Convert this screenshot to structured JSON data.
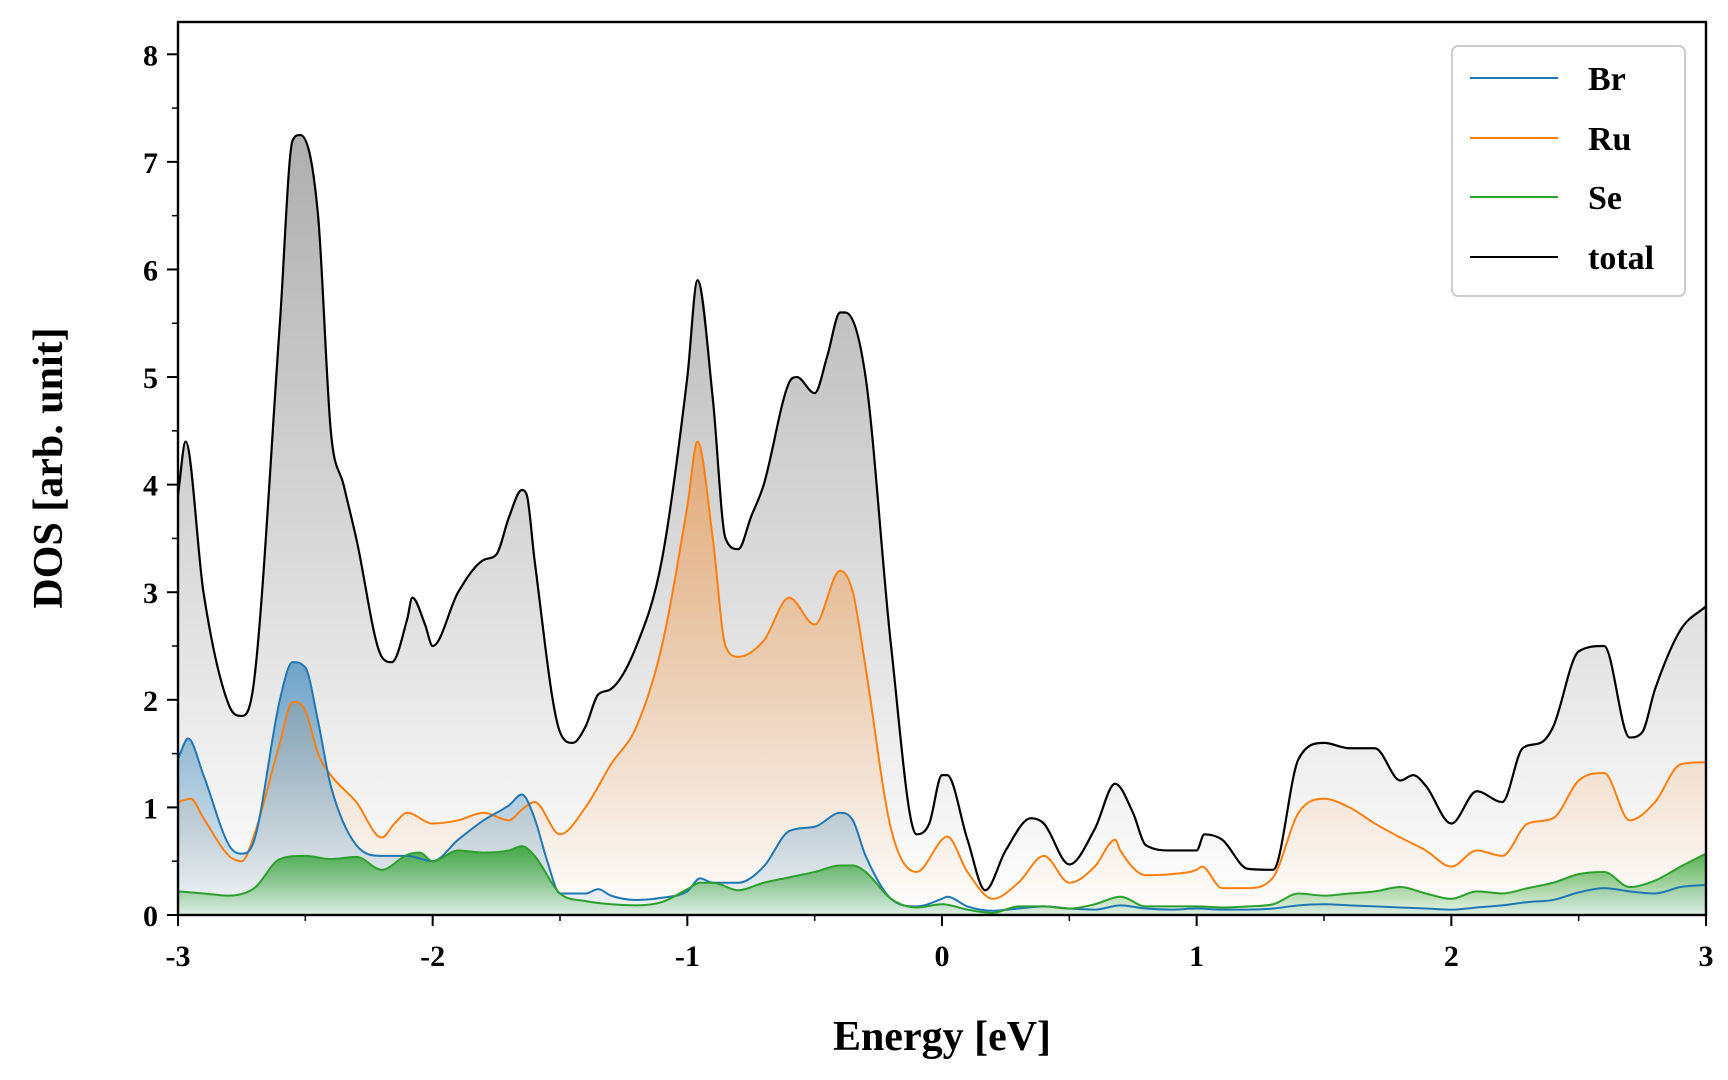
{
  "chart_data": {
    "type": "line",
    "title": "",
    "xlabel": "Energy [eV]",
    "ylabel": "DOS [arb. unit]",
    "xlim": [
      -3,
      3
    ],
    "ylim": [
      0,
      8.3
    ],
    "x_ticks": [
      -3,
      -2,
      -1,
      0,
      1,
      2,
      3
    ],
    "x_tick_labels": [
      "-3",
      "-2",
      "-1",
      "0",
      "1",
      "2",
      "3"
    ],
    "y_ticks": [
      0,
      1,
      2,
      3,
      4,
      5,
      6,
      7,
      8
    ],
    "y_tick_labels": [
      "0",
      "1",
      "2",
      "3",
      "4",
      "5",
      "6",
      "7",
      "8"
    ],
    "legend_position": "top-right",
    "grid": false,
    "series": [
      {
        "name": "Br",
        "color": "#1f77b4",
        "x": [
          -3.0,
          -2.96,
          -2.9,
          -2.8,
          -2.75,
          -2.7,
          -2.6,
          -2.55,
          -2.5,
          -2.45,
          -2.4,
          -2.3,
          -2.2,
          -2.1,
          -2.0,
          -1.9,
          -1.8,
          -1.7,
          -1.65,
          -1.6,
          -1.55,
          -1.5,
          -1.4,
          -1.35,
          -1.3,
          -1.2,
          -1.1,
          -1.0,
          -0.95,
          -0.9,
          -0.8,
          -0.7,
          -0.6,
          -0.5,
          -0.4,
          -0.35,
          -0.3,
          -0.2,
          -0.1,
          0.0,
          0.02,
          0.1,
          0.2,
          0.3,
          0.4,
          0.5,
          0.6,
          0.7,
          0.8,
          0.9,
          1.0,
          1.1,
          1.2,
          1.3,
          1.4,
          1.5,
          1.6,
          1.7,
          1.8,
          1.9,
          2.0,
          2.1,
          2.2,
          2.3,
          2.4,
          2.5,
          2.6,
          2.7,
          2.8,
          2.9,
          3.0
        ],
        "values": [
          1.45,
          1.64,
          1.3,
          0.65,
          0.57,
          0.7,
          2.0,
          2.35,
          2.3,
          1.8,
          1.2,
          0.65,
          0.55,
          0.55,
          0.5,
          0.7,
          0.88,
          1.02,
          1.12,
          0.9,
          0.5,
          0.2,
          0.2,
          0.24,
          0.18,
          0.14,
          0.16,
          0.22,
          0.34,
          0.3,
          0.3,
          0.45,
          0.78,
          0.82,
          0.95,
          0.88,
          0.55,
          0.15,
          0.08,
          0.15,
          0.17,
          0.08,
          0.04,
          0.06,
          0.08,
          0.06,
          0.05,
          0.09,
          0.06,
          0.05,
          0.06,
          0.05,
          0.05,
          0.06,
          0.09,
          0.1,
          0.09,
          0.08,
          0.07,
          0.06,
          0.05,
          0.07,
          0.09,
          0.12,
          0.14,
          0.21,
          0.25,
          0.22,
          0.2,
          0.26,
          0.28
        ]
      },
      {
        "name": "Ru",
        "color": "#ff7f0e",
        "x": [
          -3.0,
          -2.95,
          -2.9,
          -2.8,
          -2.75,
          -2.7,
          -2.6,
          -2.55,
          -2.5,
          -2.45,
          -2.4,
          -2.3,
          -2.2,
          -2.15,
          -2.1,
          -2.0,
          -1.9,
          -1.8,
          -1.7,
          -1.65,
          -1.6,
          -1.5,
          -1.4,
          -1.3,
          -1.2,
          -1.1,
          -1.0,
          -0.96,
          -0.9,
          -0.85,
          -0.8,
          -0.7,
          -0.6,
          -0.5,
          -0.4,
          -0.35,
          -0.3,
          -0.2,
          -0.1,
          0.0,
          0.02,
          0.1,
          0.2,
          0.3,
          0.4,
          0.5,
          0.6,
          0.68,
          0.7,
          0.8,
          0.9,
          1.0,
          1.02,
          1.1,
          1.2,
          1.3,
          1.4,
          1.5,
          1.6,
          1.7,
          1.8,
          1.9,
          2.0,
          2.1,
          2.2,
          2.3,
          2.4,
          2.5,
          2.6,
          2.7,
          2.8,
          2.9,
          3.0
        ],
        "values": [
          1.05,
          1.08,
          0.9,
          0.55,
          0.5,
          0.75,
          1.6,
          1.98,
          1.9,
          1.5,
          1.3,
          1.05,
          0.72,
          0.85,
          0.95,
          0.85,
          0.88,
          0.95,
          0.88,
          0.98,
          1.05,
          0.75,
          1.0,
          1.4,
          1.75,
          2.5,
          3.8,
          4.4,
          3.5,
          2.5,
          2.4,
          2.55,
          2.95,
          2.7,
          3.2,
          3.0,
          2.3,
          0.8,
          0.4,
          0.7,
          0.73,
          0.4,
          0.15,
          0.3,
          0.55,
          0.3,
          0.45,
          0.7,
          0.6,
          0.37,
          0.38,
          0.42,
          0.45,
          0.25,
          0.25,
          0.35,
          0.95,
          1.08,
          1.0,
          0.85,
          0.72,
          0.6,
          0.45,
          0.6,
          0.55,
          0.85,
          0.9,
          1.25,
          1.32,
          0.88,
          1.05,
          1.4,
          1.42
        ]
      },
      {
        "name": "Se",
        "color": "#2ca02c",
        "x": [
          -3.0,
          -2.9,
          -2.8,
          -2.7,
          -2.6,
          -2.5,
          -2.4,
          -2.3,
          -2.2,
          -2.1,
          -2.05,
          -2.0,
          -1.9,
          -1.8,
          -1.7,
          -1.65,
          -1.6,
          -1.5,
          -1.4,
          -1.3,
          -1.2,
          -1.1,
          -1.0,
          -0.95,
          -0.9,
          -0.8,
          -0.7,
          -0.6,
          -0.5,
          -0.4,
          -0.35,
          -0.3,
          -0.2,
          -0.1,
          0.0,
          0.1,
          0.2,
          0.3,
          0.4,
          0.5,
          0.6,
          0.7,
          0.8,
          0.9,
          1.0,
          1.1,
          1.2,
          1.3,
          1.4,
          1.5,
          1.6,
          1.7,
          1.8,
          1.9,
          2.0,
          2.1,
          2.2,
          2.3,
          2.4,
          2.5,
          2.6,
          2.7,
          2.8,
          2.9,
          3.0
        ],
        "values": [
          0.22,
          0.2,
          0.18,
          0.25,
          0.52,
          0.55,
          0.52,
          0.54,
          0.42,
          0.56,
          0.58,
          0.5,
          0.6,
          0.58,
          0.6,
          0.64,
          0.55,
          0.2,
          0.13,
          0.1,
          0.09,
          0.12,
          0.24,
          0.3,
          0.3,
          0.23,
          0.3,
          0.35,
          0.4,
          0.46,
          0.46,
          0.4,
          0.15,
          0.07,
          0.1,
          0.05,
          0.02,
          0.08,
          0.08,
          0.06,
          0.1,
          0.17,
          0.08,
          0.08,
          0.08,
          0.07,
          0.08,
          0.1,
          0.2,
          0.18,
          0.2,
          0.22,
          0.26,
          0.2,
          0.15,
          0.22,
          0.2,
          0.25,
          0.3,
          0.38,
          0.4,
          0.26,
          0.32,
          0.45,
          0.57
        ]
      },
      {
        "name": "total",
        "color": "#000000",
        "x": [
          -3.0,
          -2.97,
          -2.9,
          -2.8,
          -2.75,
          -2.7,
          -2.6,
          -2.55,
          -2.52,
          -2.45,
          -2.4,
          -2.35,
          -2.3,
          -2.2,
          -2.16,
          -2.1,
          -2.08,
          -2.03,
          -2.0,
          -1.9,
          -1.8,
          -1.75,
          -1.7,
          -1.65,
          -1.63,
          -1.6,
          -1.5,
          -1.45,
          -1.4,
          -1.35,
          -1.3,
          -1.2,
          -1.1,
          -1.0,
          -0.96,
          -0.9,
          -0.85,
          -0.8,
          -0.75,
          -0.7,
          -0.6,
          -0.57,
          -0.5,
          -0.45,
          -0.4,
          -0.38,
          -0.3,
          -0.2,
          -0.1,
          -0.05,
          0.0,
          0.02,
          0.1,
          0.17,
          0.25,
          0.35,
          0.4,
          0.5,
          0.6,
          0.68,
          0.75,
          0.8,
          0.9,
          1.0,
          1.03,
          1.1,
          1.2,
          1.3,
          1.4,
          1.5,
          1.6,
          1.7,
          1.8,
          1.85,
          1.9,
          2.0,
          2.1,
          2.2,
          2.28,
          2.35,
          2.4,
          2.5,
          2.6,
          2.7,
          2.75,
          2.8,
          2.9,
          3.0
        ],
        "values": [
          3.9,
          4.4,
          3.0,
          1.95,
          1.85,
          2.2,
          5.5,
          7.2,
          7.25,
          6.5,
          4.5,
          4.0,
          3.5,
          2.4,
          2.35,
          2.75,
          2.95,
          2.7,
          2.5,
          3.0,
          3.3,
          3.35,
          3.7,
          3.95,
          3.9,
          3.3,
          1.7,
          1.6,
          1.75,
          2.05,
          2.1,
          2.5,
          3.3,
          5.0,
          5.9,
          4.8,
          3.5,
          3.4,
          3.7,
          4.0,
          4.95,
          5.0,
          4.85,
          5.2,
          5.6,
          5.6,
          5.0,
          2.5,
          0.75,
          0.85,
          1.3,
          1.3,
          0.7,
          0.23,
          0.6,
          0.9,
          0.85,
          0.47,
          0.8,
          1.22,
          0.95,
          0.65,
          0.6,
          0.6,
          0.75,
          0.7,
          0.43,
          0.42,
          1.45,
          1.6,
          1.55,
          1.55,
          1.25,
          1.3,
          1.2,
          0.85,
          1.15,
          1.05,
          1.55,
          1.6,
          1.75,
          2.45,
          2.5,
          1.65,
          1.7,
          2.1,
          2.65,
          2.87
        ]
      }
    ],
    "legend": [
      "Br",
      "Ru",
      "Se",
      "total"
    ]
  }
}
